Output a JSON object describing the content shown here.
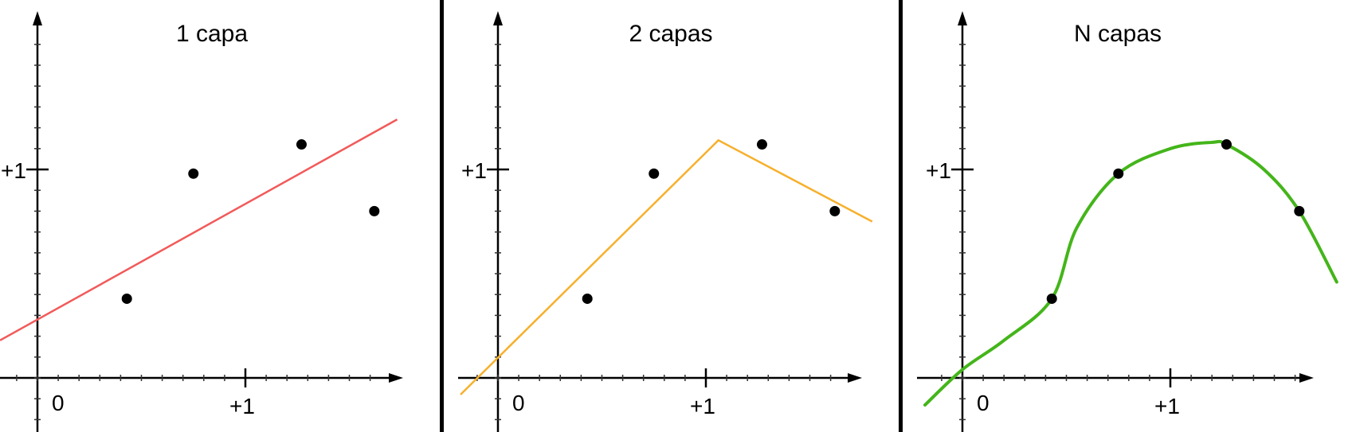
{
  "chart_data": [
    {
      "type": "scatter",
      "title": "1 capa",
      "x_tick_labels": [
        "0",
        "+1"
      ],
      "y_tick_labels": [
        "+1"
      ],
      "xlim": [
        -0.18,
        1.8
      ],
      "ylim": [
        -0.27,
        1.8
      ],
      "points": [
        {
          "x": 0.43,
          "y": 0.38
        },
        {
          "x": 0.75,
          "y": 0.98
        },
        {
          "x": 1.27,
          "y": 1.12
        },
        {
          "x": 1.62,
          "y": 0.8
        }
      ],
      "fit": {
        "kind": "linear",
        "color": "#f25a5a",
        "x": [
          -0.18,
          1.73
        ],
        "y": [
          0.18,
          1.24
        ]
      }
    },
    {
      "type": "scatter",
      "title": "2 capas",
      "x_tick_labels": [
        "0",
        "+1"
      ],
      "y_tick_labels": [
        "+1"
      ],
      "xlim": [
        -0.18,
        1.8
      ],
      "ylim": [
        -0.27,
        1.8
      ],
      "points": [
        {
          "x": 0.43,
          "y": 0.38
        },
        {
          "x": 0.75,
          "y": 0.98
        },
        {
          "x": 1.27,
          "y": 1.12
        },
        {
          "x": 1.62,
          "y": 0.8
        }
      ],
      "fit": {
        "kind": "piecewise-linear",
        "color": "#f7b02c",
        "x": [
          -0.18,
          1.06,
          1.8
        ],
        "y": [
          -0.08,
          1.14,
          0.75
        ]
      }
    },
    {
      "type": "scatter",
      "title": "N capas",
      "x_tick_labels": [
        "0",
        "+1"
      ],
      "y_tick_labels": [
        "+1"
      ],
      "xlim": [
        -0.18,
        1.8
      ],
      "ylim": [
        -0.27,
        1.8
      ],
      "points": [
        {
          "x": 0.43,
          "y": 0.38
        },
        {
          "x": 0.75,
          "y": 0.98
        },
        {
          "x": 1.27,
          "y": 1.12
        },
        {
          "x": 1.62,
          "y": 0.8
        }
      ],
      "fit": {
        "kind": "smooth-curve",
        "color": "#44b51a",
        "x": [
          -0.18,
          0.0,
          0.2,
          0.43,
          0.55,
          0.75,
          1.0,
          1.2,
          1.27,
          1.45,
          1.62,
          1.8
        ],
        "y": [
          -0.13,
          0.04,
          0.18,
          0.38,
          0.72,
          0.98,
          1.1,
          1.13,
          1.12,
          1.0,
          0.8,
          0.46
        ]
      }
    }
  ],
  "styles": {
    "axis_color": "#000000",
    "point_color": "#000000",
    "divider_color": "#000000"
  }
}
